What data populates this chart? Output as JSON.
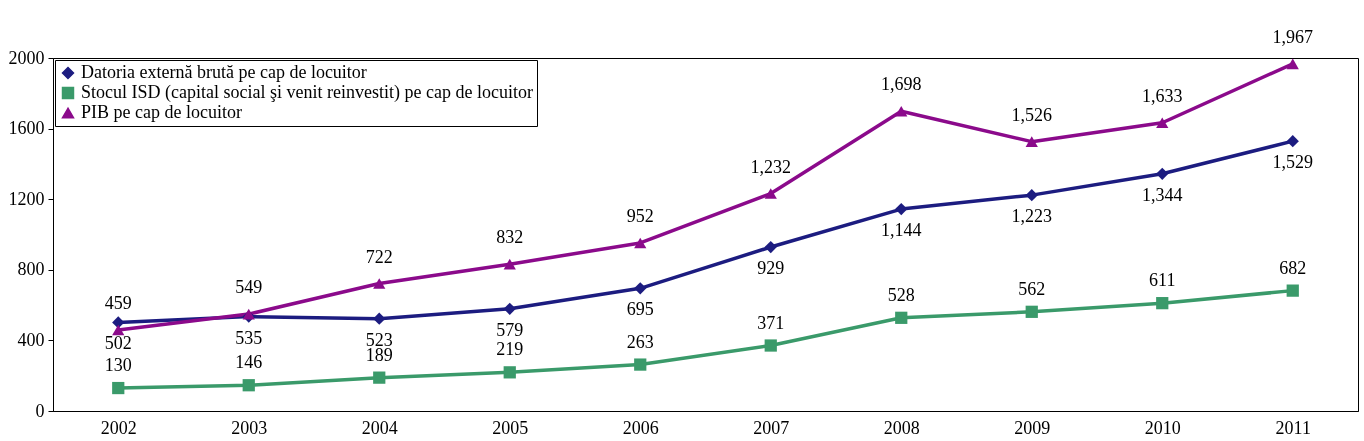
{
  "chart_data": {
    "type": "line",
    "categories": [
      "2002",
      "2003",
      "2004",
      "2005",
      "2006",
      "2007",
      "2008",
      "2009",
      "2010",
      "2011"
    ],
    "series": [
      {
        "name": "Datoria externă brută pe cap de locuitor",
        "color": "#1c1c80",
        "marker": "diamond",
        "values": [
          502,
          535,
          523,
          579,
          695,
          929,
          1144,
          1223,
          1344,
          1529
        ],
        "value_labels": [
          "502",
          "535",
          "523",
          "579",
          "695",
          "929",
          "1,144",
          "1,223",
          "1,344",
          "1,529"
        ]
      },
      {
        "name": "Stocul ISD (capital social şi venit reinvestit) pe cap de locuitor",
        "color": "#3a9a6a",
        "marker": "square",
        "values": [
          130,
          146,
          189,
          219,
          263,
          371,
          528,
          562,
          611,
          682
        ],
        "value_labels": [
          "130",
          "146",
          "189",
          "219",
          "263",
          "371",
          "528",
          "562",
          "611",
          "682"
        ]
      },
      {
        "name": "PIB pe cap de locuitor",
        "color": "#8b0a8b",
        "marker": "triangle",
        "values": [
          459,
          549,
          722,
          832,
          952,
          1232,
          1698,
          1526,
          1633,
          1967
        ],
        "value_labels": [
          "459",
          "549",
          "722",
          "832",
          "952",
          "1,232",
          "1,698",
          "1,526",
          "1,633",
          "1,967"
        ]
      }
    ],
    "ylim": [
      0,
      2000
    ],
    "yticks": [
      0,
      400,
      800,
      1200,
      1600,
      2000
    ],
    "legend": "top left"
  }
}
